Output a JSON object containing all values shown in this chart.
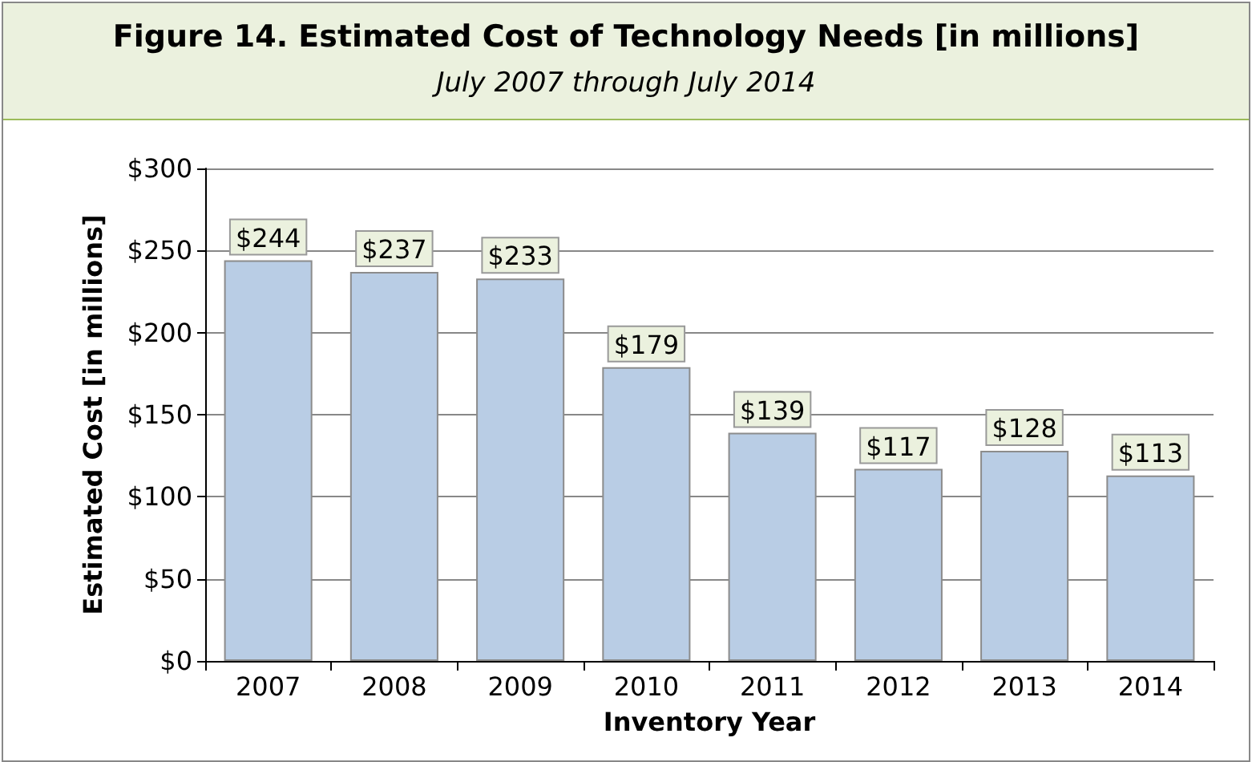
{
  "chart_data": {
    "type": "bar",
    "title": "Figure 14.  Estimated Cost of Technology Needs [in millions]",
    "subtitle": "July 2007 through July 2014",
    "xlabel": "Inventory Year",
    "ylabel": "Estimated Cost [in millions]",
    "categories": [
      "2007",
      "2008",
      "2009",
      "2010",
      "2011",
      "2012",
      "2013",
      "2014"
    ],
    "values": [
      244,
      237,
      233,
      179,
      139,
      117,
      128,
      113
    ],
    "value_labels": [
      "$244",
      "$237",
      "$233",
      "$179",
      "$139",
      "$117",
      "$128",
      "$113"
    ],
    "color": "#b9cde5",
    "ylim": [
      0,
      300
    ],
    "yticks": [
      {
        "value": 0,
        "label": "$0"
      },
      {
        "value": 50,
        "label": "$50"
      },
      {
        "value": 100,
        "label": "$100"
      },
      {
        "value": 150,
        "label": "$150"
      },
      {
        "value": 200,
        "label": "$200"
      },
      {
        "value": 250,
        "label": "$250"
      },
      {
        "value": 300,
        "label": "$300"
      }
    ],
    "grid": "y"
  }
}
